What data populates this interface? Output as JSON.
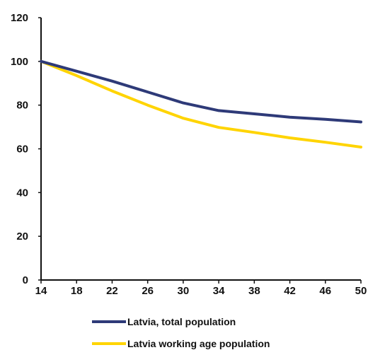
{
  "chart_data": {
    "type": "line",
    "title": "",
    "xlabel": "",
    "ylabel": "",
    "x": [
      14,
      18,
      22,
      26,
      30,
      34,
      38,
      42,
      46,
      50
    ],
    "xticks": [
      "14",
      "18",
      "22",
      "26",
      "30",
      "34",
      "38",
      "42",
      "46",
      "50"
    ],
    "yticks": [
      0,
      20,
      40,
      60,
      80,
      100,
      120
    ],
    "xlim": [
      14,
      50
    ],
    "ylim": [
      0,
      120
    ],
    "grid": false,
    "legend_position": "bottom-left",
    "series": [
      {
        "name": "Latvia, total population",
        "color": "#2e3a78",
        "values": [
          100,
          95.5,
          91,
          86,
          81,
          77.5,
          76,
          74.5,
          73.5,
          72.3
        ]
      },
      {
        "name": "Latvia working age population",
        "color": "#ffd400",
        "values": [
          100,
          93.5,
          86.5,
          80,
          74,
          69.8,
          67.5,
          65,
          63,
          60.8
        ]
      }
    ]
  }
}
